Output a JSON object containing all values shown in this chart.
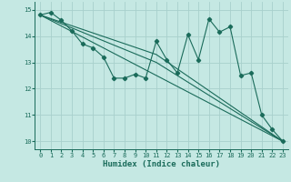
{
  "title": "",
  "xlabel": "Humidex (Indice chaleur)",
  "ylabel": "",
  "bg_color": "#c5e8e3",
  "grid_color": "#a8d0cc",
  "line_color": "#1a6b5a",
  "xlim": [
    -0.5,
    23.5
  ],
  "ylim": [
    9.7,
    15.3
  ],
  "yticks": [
    10,
    11,
    12,
    13,
    14,
    15
  ],
  "xticks": [
    0,
    1,
    2,
    3,
    4,
    5,
    6,
    7,
    8,
    9,
    10,
    11,
    12,
    13,
    14,
    15,
    16,
    17,
    18,
    19,
    20,
    21,
    22,
    23
  ],
  "series1_x": [
    0,
    1,
    2,
    3,
    4,
    5,
    6,
    7,
    8,
    9,
    10,
    11,
    12,
    13,
    14,
    15,
    16,
    17,
    18,
    19,
    20,
    21,
    22,
    23
  ],
  "series1_y": [
    14.8,
    14.9,
    14.6,
    14.2,
    13.7,
    13.55,
    13.2,
    12.4,
    12.4,
    12.55,
    12.4,
    13.8,
    13.1,
    12.6,
    14.05,
    13.1,
    14.65,
    14.15,
    14.35,
    12.5,
    12.6,
    11.0,
    10.45,
    10.0
  ],
  "series2_y": [
    14.8,
    10.0
  ],
  "series3_y": [
    14.8,
    13.3,
    10.0
  ],
  "series4_y": [
    14.8,
    13.0,
    10.0
  ],
  "marker_size": 2.2,
  "lw": 0.8,
  "xlabel_fontsize": 6.5,
  "tick_fontsize": 5.0
}
